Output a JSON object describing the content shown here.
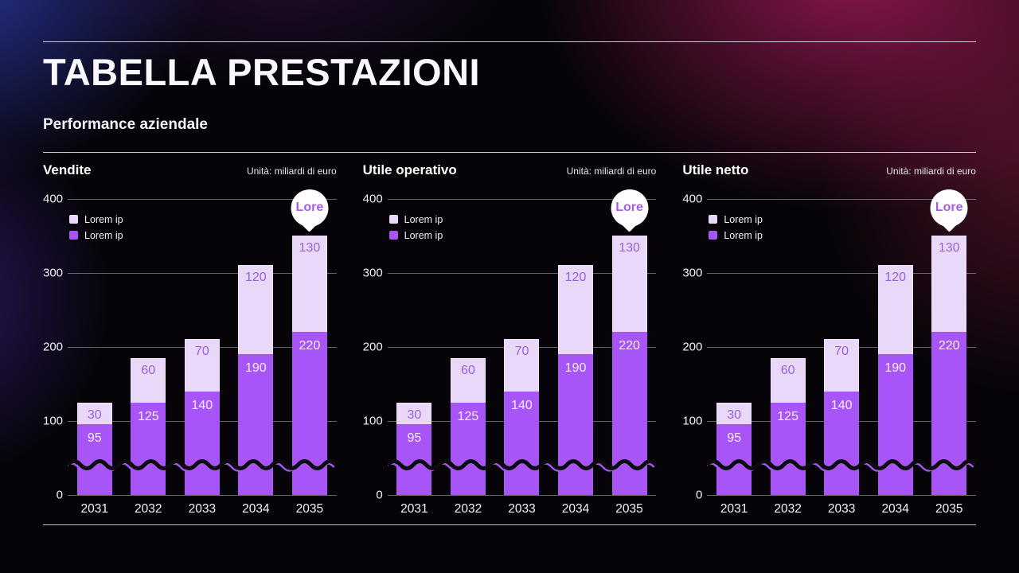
{
  "page": {
    "title": "TABELLA PRESTAZIONI",
    "subtitle": "Performance aziendale"
  },
  "colors": {
    "series_primary": "#a855f7",
    "series_secondary": "#e9d8f8",
    "label_on_primary": "#f6ecfd",
    "label_on_secondary": "#9760e0",
    "callout_text": "#a25cf3",
    "callout_background": "#ffffff",
    "gridline": "rgba(226,224,236,0.42)",
    "wave_dark": "#0c0b0e"
  },
  "chart_data": [
    {
      "type": "bar",
      "stacked": true,
      "title": "Vendite",
      "unit": "Unità: miliardi di euro",
      "categories": [
        "2031",
        "2032",
        "2033",
        "2034",
        "2035"
      ],
      "series": [
        {
          "name": "Lorem ip",
          "color": "#a855f7",
          "label_color": "#f6ecfd",
          "values": [
            95,
            125,
            140,
            190,
            220
          ]
        },
        {
          "name": "Lorem ip",
          "color": "#e9d8f8",
          "label_color": "#9760e0",
          "values": [
            30,
            60,
            70,
            120,
            130
          ]
        }
      ],
      "legend": [
        {
          "label": "Lorem ip",
          "color": "#e9d8f8"
        },
        {
          "label": "Lorem ip",
          "color": "#a855f7"
        }
      ],
      "ylim": [
        0,
        400
      ],
      "yticks": [
        0,
        100,
        200,
        300,
        400
      ],
      "grid": true,
      "legend_position": "top-left",
      "axis_break_wave": true,
      "callout": {
        "label": "Lore",
        "target_category": "2035"
      }
    },
    {
      "type": "bar",
      "stacked": true,
      "title": "Utile operativo",
      "unit": "Unità: miliardi di euro",
      "categories": [
        "2031",
        "2032",
        "2033",
        "2034",
        "2035"
      ],
      "series": [
        {
          "name": "Lorem ip",
          "color": "#a855f7",
          "label_color": "#f6ecfd",
          "values": [
            95,
            125,
            140,
            190,
            220
          ]
        },
        {
          "name": "Lorem ip",
          "color": "#e9d8f8",
          "label_color": "#9760e0",
          "values": [
            30,
            60,
            70,
            120,
            130
          ]
        }
      ],
      "legend": [
        {
          "label": "Lorem ip",
          "color": "#e9d8f8"
        },
        {
          "label": "Lorem ip",
          "color": "#a855f7"
        }
      ],
      "ylim": [
        0,
        400
      ],
      "yticks": [
        0,
        100,
        200,
        300,
        400
      ],
      "grid": true,
      "legend_position": "top-left",
      "axis_break_wave": true,
      "callout": {
        "label": "Lore",
        "target_category": "2035"
      }
    },
    {
      "type": "bar",
      "stacked": true,
      "title": "Utile netto",
      "unit": "Unità: miliardi di euro",
      "categories": [
        "2031",
        "2032",
        "2033",
        "2034",
        "2035"
      ],
      "series": [
        {
          "name": "Lorem ip",
          "color": "#a855f7",
          "label_color": "#f6ecfd",
          "values": [
            95,
            125,
            140,
            190,
            220
          ]
        },
        {
          "name": "Lorem ip",
          "color": "#e9d8f8",
          "label_color": "#9760e0",
          "values": [
            30,
            60,
            70,
            120,
            130
          ]
        }
      ],
      "legend": [
        {
          "label": "Lorem ip",
          "color": "#e9d8f8"
        },
        {
          "label": "Lorem ip",
          "color": "#a855f7"
        }
      ],
      "ylim": [
        0,
        400
      ],
      "yticks": [
        0,
        100,
        200,
        300,
        400
      ],
      "grid": true,
      "legend_position": "top-left",
      "axis_break_wave": true,
      "callout": {
        "label": "Lore",
        "target_category": "2035"
      }
    }
  ]
}
